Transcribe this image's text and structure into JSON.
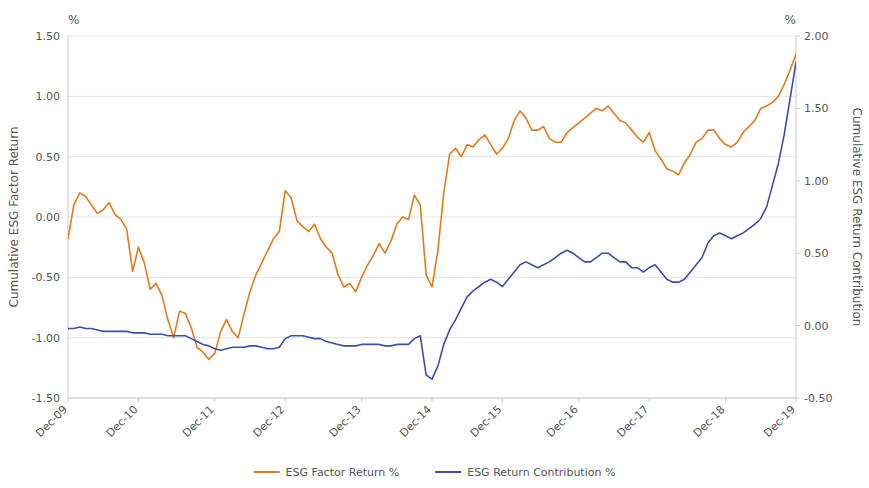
{
  "chart_data": {
    "type": "line",
    "y_label": "Cumulative ESG Factor Return",
    "y2_label": "Cumulative ESG Return Contribution",
    "annotations": [
      {
        "text": "%",
        "axis": "y"
      },
      {
        "text": "%",
        "axis": "y2"
      }
    ],
    "categories": [
      "Dec-09",
      null,
      null,
      null,
      null,
      null,
      null,
      null,
      null,
      null,
      null,
      null,
      "Dec-10",
      null,
      null,
      null,
      null,
      null,
      null,
      null,
      null,
      null,
      null,
      null,
      null,
      "Dec-11",
      null,
      null,
      null,
      null,
      null,
      null,
      null,
      null,
      null,
      null,
      null,
      "Dec-12",
      null,
      null,
      null,
      null,
      null,
      null,
      null,
      null,
      null,
      null,
      null,
      null,
      "Dec-13",
      null,
      null,
      null,
      null,
      null,
      null,
      null,
      null,
      null,
      null,
      null,
      "Dec-14",
      null,
      null,
      null,
      null,
      null,
      null,
      null,
      null,
      null,
      null,
      null,
      "Dec-15",
      null,
      null,
      null,
      null,
      null,
      null,
      null,
      null,
      null,
      null,
      null,
      null,
      "Dec-16",
      null,
      null,
      null,
      null,
      null,
      null,
      null,
      null,
      null,
      null,
      null,
      "Dec-17",
      null,
      null,
      null,
      null,
      null,
      null,
      null,
      null,
      null,
      null,
      null,
      null,
      "Dec-18",
      null,
      null,
      null,
      null,
      null,
      null,
      null,
      null,
      null,
      null,
      null,
      "Dec-19"
    ],
    "series": [
      {
        "name": "ESG Factor Return %",
        "color": "#E07B20",
        "axis": "y",
        "values": [
          -0.18,
          0.1,
          0.2,
          0.17,
          0.1,
          0.03,
          0.06,
          0.12,
          0.02,
          -0.02,
          -0.1,
          -0.45,
          -0.25,
          -0.38,
          -0.6,
          -0.55,
          -0.65,
          -0.85,
          -1.0,
          -0.78,
          -0.8,
          -0.92,
          -1.08,
          -1.12,
          -1.18,
          -1.13,
          -0.95,
          -0.85,
          -0.95,
          -1.0,
          -0.8,
          -0.62,
          -0.48,
          -0.38,
          -0.28,
          -0.18,
          -0.12,
          0.22,
          0.16,
          -0.03,
          -0.08,
          -0.12,
          -0.06,
          -0.18,
          -0.25,
          -0.3,
          -0.48,
          -0.58,
          -0.55,
          -0.62,
          -0.5,
          -0.4,
          -0.32,
          -0.22,
          -0.3,
          -0.2,
          -0.06,
          0.0,
          -0.02,
          0.18,
          0.1,
          -0.48,
          -0.58,
          -0.28,
          0.2,
          0.52,
          0.57,
          0.5,
          0.6,
          0.58,
          0.64,
          0.68,
          0.6,
          0.52,
          0.57,
          0.65,
          0.8,
          0.88,
          0.82,
          0.72,
          0.72,
          0.75,
          0.65,
          0.62,
          0.62,
          0.7,
          0.74,
          0.78,
          0.82,
          0.86,
          0.9,
          0.88,
          0.92,
          0.86,
          0.8,
          0.78,
          0.72,
          0.66,
          0.62,
          0.7,
          0.55,
          0.48,
          0.4,
          0.38,
          0.35,
          0.45,
          0.52,
          0.62,
          0.65,
          0.72,
          0.72,
          0.65,
          0.6,
          0.58,
          0.62,
          0.7,
          0.75,
          0.8,
          0.9,
          0.92,
          0.95,
          1.0,
          1.1,
          1.22,
          1.35
        ]
      },
      {
        "name": "ESG Return Contribution %",
        "color": "#3B4FA8",
        "axis": "y2",
        "values": [
          -0.02,
          -0.02,
          -0.01,
          -0.02,
          -0.02,
          -0.03,
          -0.04,
          -0.04,
          -0.04,
          -0.04,
          -0.04,
          -0.05,
          -0.05,
          -0.05,
          -0.06,
          -0.06,
          -0.06,
          -0.07,
          -0.07,
          -0.07,
          -0.07,
          -0.09,
          -0.11,
          -0.13,
          -0.14,
          -0.16,
          -0.17,
          -0.16,
          -0.15,
          -0.15,
          -0.15,
          -0.14,
          -0.14,
          -0.15,
          -0.16,
          -0.16,
          -0.15,
          -0.09,
          -0.07,
          -0.07,
          -0.07,
          -0.08,
          -0.09,
          -0.09,
          -0.11,
          -0.12,
          -0.13,
          -0.14,
          -0.14,
          -0.14,
          -0.13,
          -0.13,
          -0.13,
          -0.13,
          -0.14,
          -0.14,
          -0.13,
          -0.13,
          -0.13,
          -0.09,
          -0.07,
          -0.34,
          -0.37,
          -0.28,
          -0.13,
          -0.03,
          0.04,
          0.12,
          0.2,
          0.24,
          0.27,
          0.3,
          0.32,
          0.3,
          0.27,
          0.32,
          0.37,
          0.42,
          0.44,
          0.42,
          0.4,
          0.42,
          0.44,
          0.47,
          0.5,
          0.52,
          0.5,
          0.47,
          0.44,
          0.44,
          0.47,
          0.5,
          0.5,
          0.47,
          0.44,
          0.44,
          0.4,
          0.4,
          0.37,
          0.4,
          0.42,
          0.37,
          0.32,
          0.3,
          0.3,
          0.32,
          0.37,
          0.42,
          0.47,
          0.57,
          0.62,
          0.64,
          0.62,
          0.6,
          0.62,
          0.64,
          0.67,
          0.7,
          0.74,
          0.82,
          0.97,
          1.12,
          1.32,
          1.57,
          1.82
        ]
      }
    ],
    "ylim": [
      -1.5,
      1.5
    ],
    "yticks": [
      {
        "value": -1.5,
        "label": "-1.50"
      },
      {
        "value": -1.0,
        "label": "-1.00"
      },
      {
        "value": -0.5,
        "label": "-0.50"
      },
      {
        "value": 0.0,
        "label": "0.00"
      },
      {
        "value": 0.5,
        "label": "0.50"
      },
      {
        "value": 1.0,
        "label": "1.00"
      },
      {
        "value": 1.5,
        "label": "1.50"
      }
    ],
    "y2lim": [
      -0.5,
      2.0
    ],
    "y2ticks": [
      {
        "value": -0.5,
        "label": "-0.50"
      },
      {
        "value": 0.0,
        "label": "0.00"
      },
      {
        "value": 0.5,
        "label": "0.50"
      },
      {
        "value": 1.0,
        "label": "1.00"
      },
      {
        "value": 1.5,
        "label": "1.50"
      },
      {
        "value": 2.0,
        "label": "2.00"
      }
    ],
    "grid": true,
    "legend": "bottom"
  }
}
